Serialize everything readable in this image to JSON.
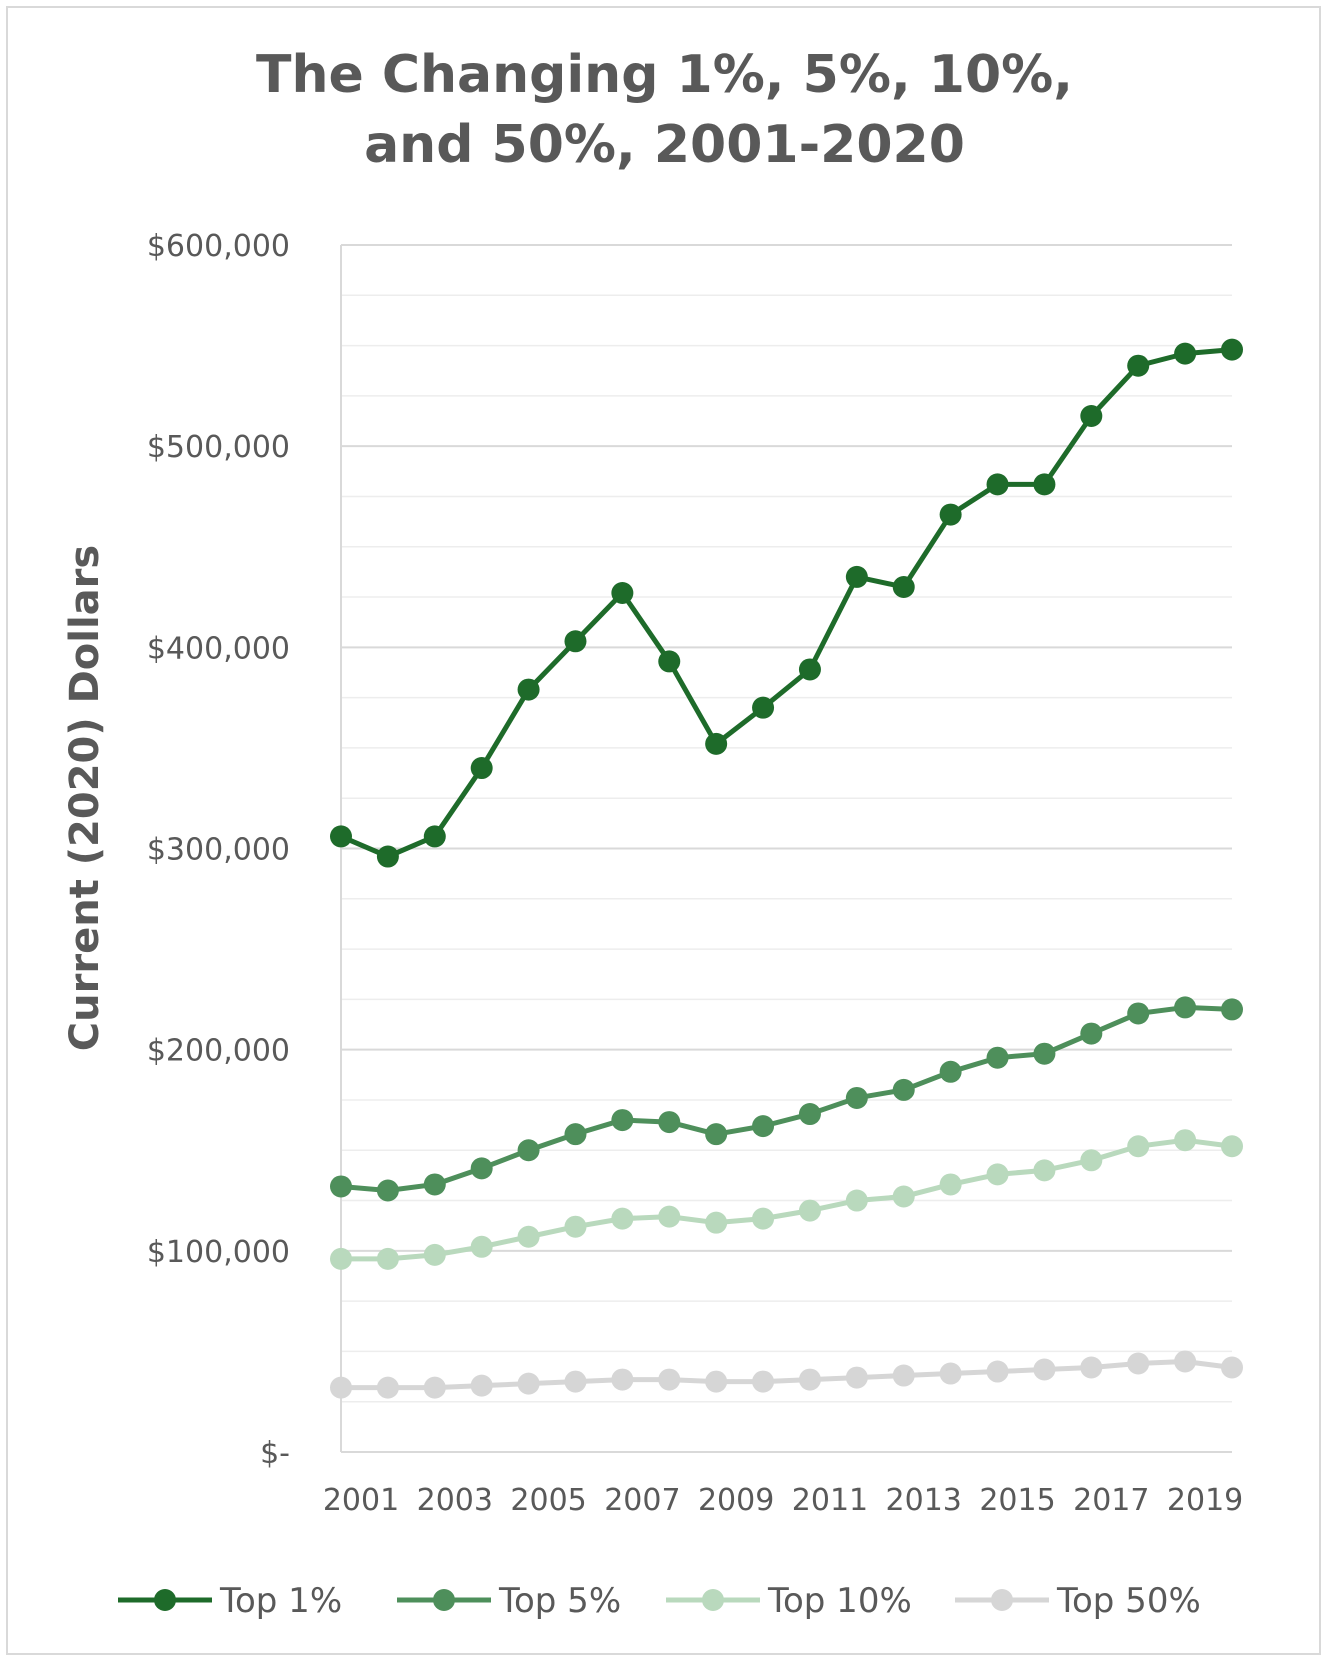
{
  "chart_data": {
    "type": "line",
    "title_lines": [
      "The Changing 1%, 5%, 10%,",
      "and 50%, 2001-2020"
    ],
    "ylabel": "Current (2020) Dollars",
    "xlabel": "",
    "ylim": [
      0,
      600000
    ],
    "y_ticks": [
      0,
      100000,
      200000,
      300000,
      400000,
      500000,
      600000
    ],
    "y_tick_labels": [
      "$-",
      "$100,000",
      "$200,000",
      "$300,000",
      "$400,000",
      "$500,000",
      "$600,000"
    ],
    "x": [
      2001,
      2002,
      2003,
      2004,
      2005,
      2006,
      2007,
      2008,
      2009,
      2010,
      2011,
      2012,
      2013,
      2014,
      2015,
      2016,
      2017,
      2018,
      2019,
      2020
    ],
    "x_tick_labels": [
      "2001",
      "2003",
      "2005",
      "2007",
      "2009",
      "2011",
      "2013",
      "2015",
      "2017",
      "2019"
    ],
    "x_tick_values": [
      2001,
      2003,
      2005,
      2007,
      2009,
      2011,
      2013,
      2015,
      2017,
      2019
    ],
    "grid": true,
    "legend_position": "bottom",
    "series": [
      {
        "name": "Top 1%",
        "color": "#1e6b2a",
        "values": [
          306000,
          296000,
          306000,
          340000,
          379000,
          403000,
          427000,
          393000,
          352000,
          370000,
          389000,
          435000,
          430000,
          466000,
          481000,
          481000,
          515000,
          540000,
          546000,
          548000
        ]
      },
      {
        "name": "Top 5%",
        "color": "#4e8f5b",
        "values": [
          132000,
          130000,
          133000,
          141000,
          150000,
          158000,
          165000,
          164000,
          158000,
          162000,
          168000,
          176000,
          180000,
          189000,
          196000,
          198000,
          208000,
          218000,
          221000,
          220000
        ]
      },
      {
        "name": "Top 10%",
        "color": "#b9d9bd",
        "values": [
          96000,
          96000,
          98000,
          102000,
          107000,
          112000,
          116000,
          117000,
          114000,
          116000,
          120000,
          125000,
          127000,
          133000,
          138000,
          140000,
          145000,
          152000,
          155000,
          152000
        ]
      },
      {
        "name": "Top 50%",
        "color": "#d6d6d6",
        "values": [
          32000,
          32000,
          32000,
          33000,
          34000,
          35000,
          36000,
          36000,
          35000,
          35000,
          36000,
          37000,
          38000,
          39000,
          40000,
          41000,
          42000,
          44000,
          45000,
          42000
        ]
      }
    ]
  }
}
